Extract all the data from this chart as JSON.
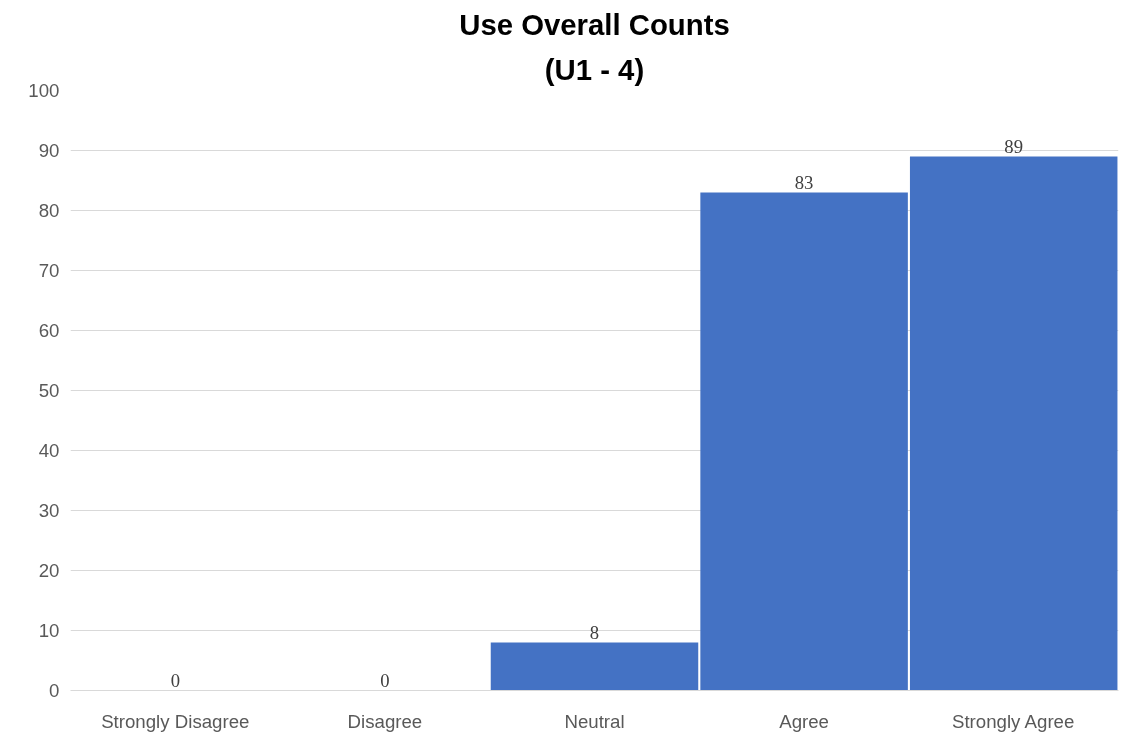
{
  "chart_data": {
    "type": "bar",
    "title": "Use Overall Counts",
    "subtitle": "(U1 - 4)",
    "categories": [
      "Strongly Disagree",
      "Disagree",
      "Neutral",
      "Agree",
      "Strongly Agree"
    ],
    "values": [
      0,
      0,
      8,
      83,
      89
    ],
    "color": "#4472c4",
    "ylim": [
      0,
      100
    ],
    "yticks": [
      0,
      10,
      20,
      30,
      40,
      50,
      60,
      70,
      80,
      90,
      100
    ],
    "grid": "y",
    "data_labels": true
  }
}
